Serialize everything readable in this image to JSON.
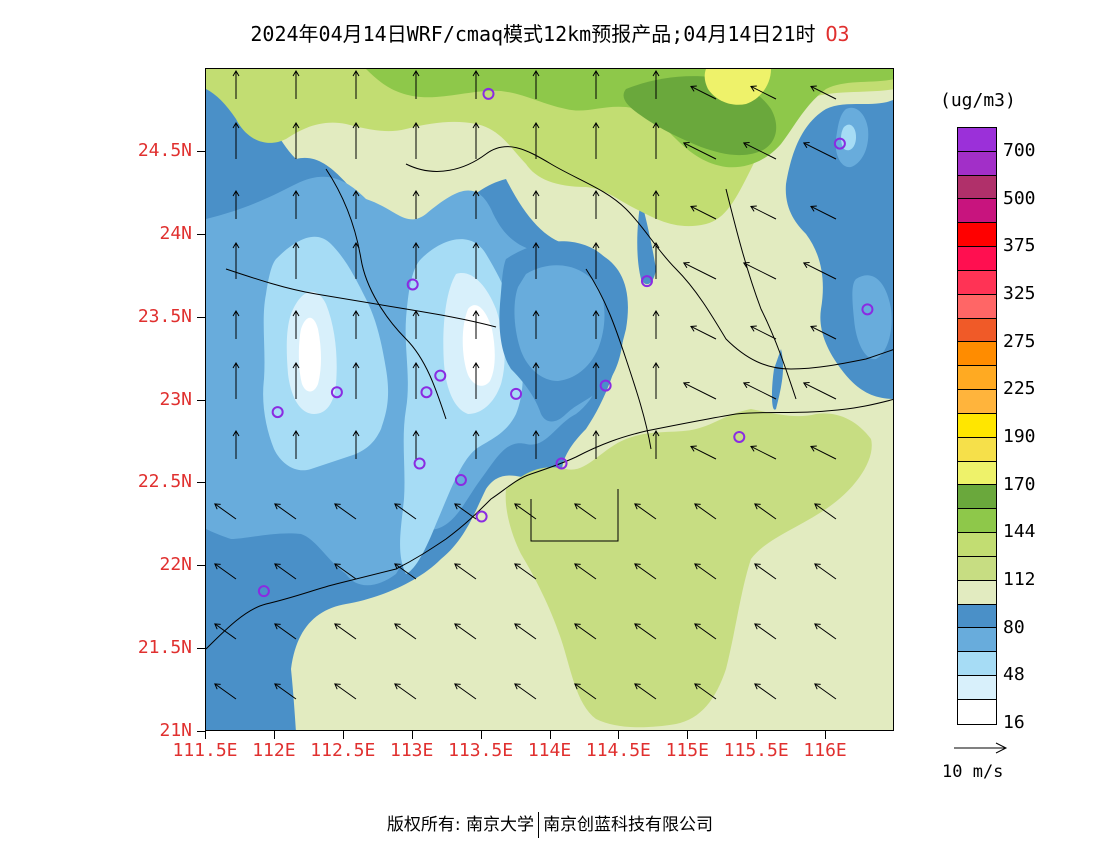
{
  "title": {
    "text": "2024年04月14日WRF/cmaq模式12km预报产品;04月14日21时",
    "species": "O3"
  },
  "axes": {
    "lat_labels": [
      "24.5N",
      "24N",
      "23.5N",
      "23N",
      "22.5N",
      "22N",
      "21.5N",
      "21N"
    ],
    "lon_labels": [
      "111.5E",
      "112E",
      "112.5E",
      "113E",
      "113.5E",
      "114E",
      "114.5E",
      "115E",
      "115.5E",
      "116E"
    ],
    "lat_range": [
      21,
      25
    ],
    "lon_range": [
      111.5,
      116.5
    ],
    "label_color": "#e0302f"
  },
  "colorbar": {
    "unit": "(ug/m3)",
    "colors": [
      "#9b30d9",
      "#a22fc8",
      "#b0306a",
      "#c8147e",
      "#ff0000",
      "#ff0f50",
      "#ff3355",
      "#ff6666",
      "#f05a28",
      "#ff8c00",
      "#ffaa22",
      "#ffb43c",
      "#ffe600",
      "#f6e04a",
      "#eef26a",
      "#6aa83c",
      "#8ec84a",
      "#c2dd72",
      "#c7dd82",
      "#e2ebc0",
      "#4a90c8",
      "#68acdc",
      "#a6dcf5",
      "#d8f0fb",
      "#ffffff"
    ],
    "labels": [
      "700",
      "500",
      "375",
      "325",
      "275",
      "225",
      "190",
      "170",
      "144",
      "112",
      "80",
      "48",
      "16"
    ]
  },
  "vector_key": {
    "label": "10  m/s"
  },
  "stations": [
    {
      "lon": 113.55,
      "lat": 24.85
    },
    {
      "lon": 116.1,
      "lat": 24.55
    },
    {
      "lon": 114.7,
      "lat": 23.72
    },
    {
      "lon": 113.0,
      "lat": 23.7
    },
    {
      "lon": 116.3,
      "lat": 23.55
    },
    {
      "lon": 113.2,
      "lat": 23.15
    },
    {
      "lon": 112.45,
      "lat": 23.05
    },
    {
      "lon": 113.1,
      "lat": 23.05
    },
    {
      "lon": 113.75,
      "lat": 23.04
    },
    {
      "lon": 114.4,
      "lat": 23.09
    },
    {
      "lon": 112.02,
      "lat": 22.93
    },
    {
      "lon": 115.37,
      "lat": 22.78
    },
    {
      "lon": 113.05,
      "lat": 22.62
    },
    {
      "lon": 114.08,
      "lat": 22.62
    },
    {
      "lon": 113.35,
      "lat": 22.52
    },
    {
      "lon": 113.5,
      "lat": 22.3
    },
    {
      "lon": 111.92,
      "lat": 21.85
    }
  ],
  "copyright": {
    "owner": "版权所有: 南京大学",
    "partner": "南京创蓝科技有限公司"
  }
}
